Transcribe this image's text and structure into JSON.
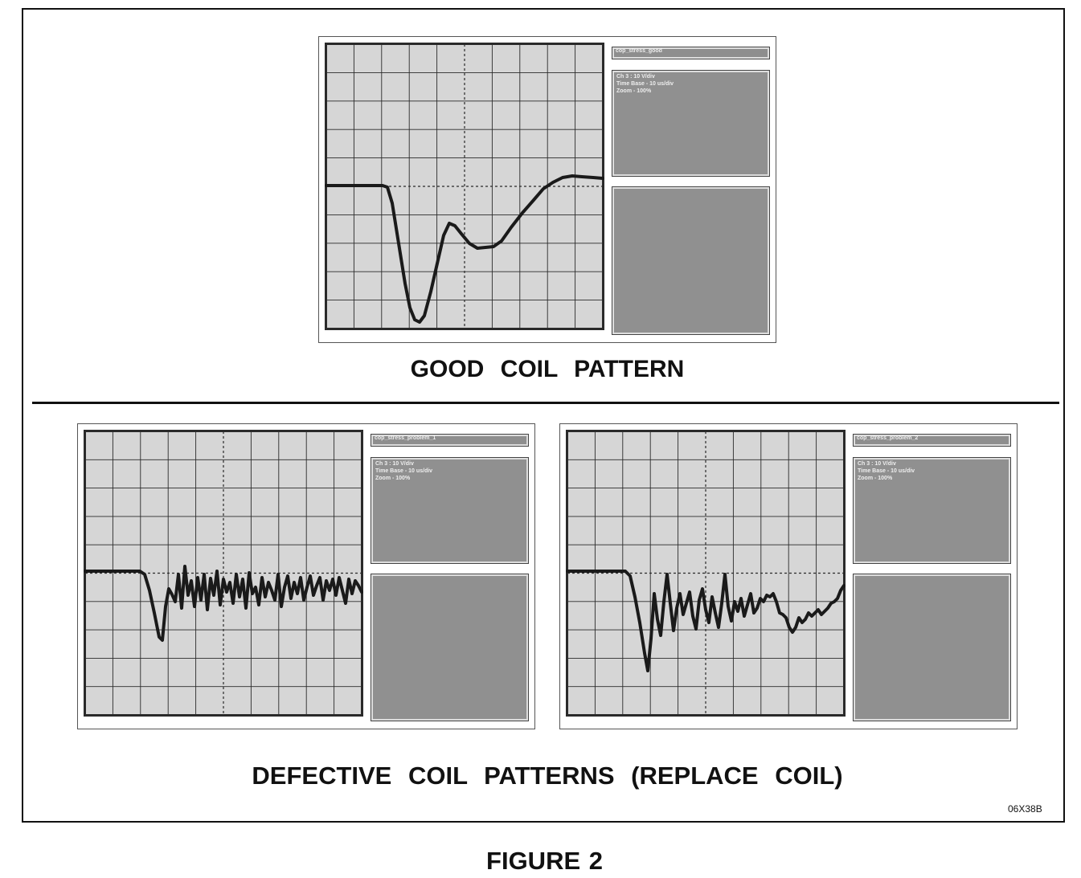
{
  "good_caption": "GOOD COIL PATTERN",
  "defective_caption": "DEFECTIVE COIL PATTERNS (REPLACE COIL)",
  "figure_label": "FIGURE 2",
  "drawing_code": "06X38B",
  "scopes": [
    {
      "title": "cop_stress_good",
      "info": [
        "Ch 3 : 10 V/div",
        "Time Base - 10 us/div",
        "Zoom - 100%"
      ],
      "waveform": "good"
    },
    {
      "title": "cop_stress_problem_1",
      "info": [
        "Ch 3 : 10 V/div",
        "Time Base - 10 us/div",
        "Zoom - 100%"
      ],
      "waveform": "problem_1"
    },
    {
      "title": "cop_stress_problem_2",
      "info": [
        "Ch 3 : 10 V/div",
        "Time Base - 10 us/div",
        "Zoom - 100%"
      ],
      "waveform": "problem_2"
    }
  ],
  "colors": {
    "screen_bg": "#d6d6d6",
    "grid": "#2a2a2a",
    "trace": "#1a1a1a",
    "panel": "#909090"
  }
}
